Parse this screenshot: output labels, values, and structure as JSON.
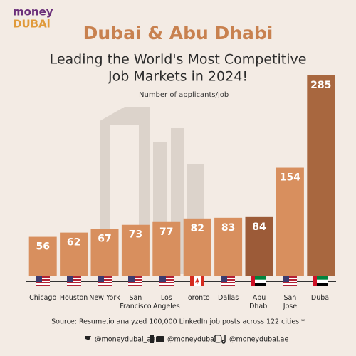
{
  "logo": {
    "line1": "money",
    "line2": "DUBAi"
  },
  "chart_data": {
    "type": "bar",
    "title": "Dubai & Abu Dhabi",
    "subtitle_lines": [
      "Leading the World's Most Competitive",
      "Job Markets in 2024!"
    ],
    "ylabel": "Number of applicants/job",
    "categories": [
      [
        "Chicago"
      ],
      [
        "Houston"
      ],
      [
        "New York"
      ],
      [
        "San",
        "Francisco"
      ],
      [
        "Los",
        "Angeles"
      ],
      [
        "Toronto"
      ],
      [
        "Dallas"
      ],
      [
        "Abu",
        "Dhabi"
      ],
      [
        "San",
        "Jose"
      ],
      [
        "Dubai"
      ]
    ],
    "values": [
      56,
      62,
      67,
      73,
      77,
      82,
      83,
      84,
      154,
      285
    ],
    "colors": [
      "#d88f5e",
      "#d88f5e",
      "#d88f5e",
      "#d88f5e",
      "#d88f5e",
      "#d88f5e",
      "#d88f5e",
      "#9c5b38",
      "#d88f5e",
      "#a8673f"
    ],
    "source": "Source: Resume.io analyzed 100,000 LinkedIn job posts across 122 cities *"
  },
  "footer": {
    "handles": [
      "@moneydubai_ae",
      "@moneydubai",
      "@moneydubai.ae"
    ]
  }
}
